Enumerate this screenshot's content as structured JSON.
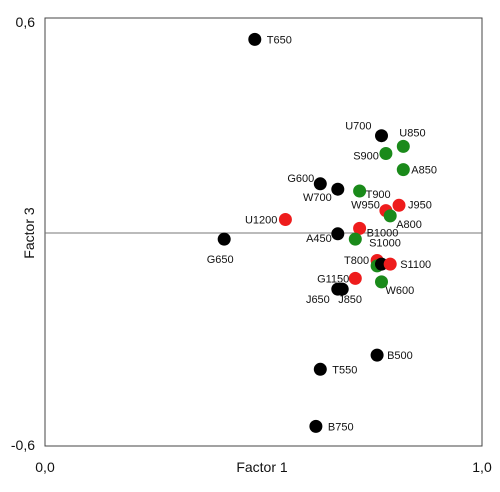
{
  "chart_data": {
    "type": "scatter",
    "title": "",
    "xlabel": "Factor 1",
    "ylabel": "Factor 3",
    "xlim": [
      0.0,
      1.0
    ],
    "ylim": [
      -0.6,
      0.6
    ],
    "x_ticks": [
      "0,0",
      "1,0"
    ],
    "y_ticks": [
      "0,6",
      "-0,6"
    ],
    "grid": false,
    "reference_line_y": 0,
    "colors": {
      "black": "#000000",
      "red": "#ee1c1c",
      "green": "#1a8a1a"
    },
    "points": [
      {
        "label": "T650",
        "x": 0.48,
        "y": 0.54,
        "color": "black"
      },
      {
        "label": "U700",
        "x": 0.77,
        "y": 0.27,
        "color": "black"
      },
      {
        "label": "U850",
        "x": 0.82,
        "y": 0.24,
        "color": "green"
      },
      {
        "label": "S900",
        "x": 0.78,
        "y": 0.22,
        "color": "green"
      },
      {
        "label": "A850",
        "x": 0.82,
        "y": 0.175,
        "color": "green"
      },
      {
        "label": "G600",
        "x": 0.63,
        "y": 0.135,
        "color": "black"
      },
      {
        "label": "W700",
        "x": 0.67,
        "y": 0.12,
        "color": "black"
      },
      {
        "label": "T900",
        "x": 0.72,
        "y": 0.115,
        "color": "green"
      },
      {
        "label": "J950",
        "x": 0.81,
        "y": 0.075,
        "color": "red"
      },
      {
        "label": "W950",
        "x": 0.78,
        "y": 0.06,
        "color": "red"
      },
      {
        "label": "A800",
        "x": 0.79,
        "y": 0.045,
        "color": "green"
      },
      {
        "label": "U1200",
        "x": 0.55,
        "y": 0.035,
        "color": "red"
      },
      {
        "label": "B1000",
        "x": 0.72,
        "y": 0.01,
        "color": "red"
      },
      {
        "label": "A450",
        "x": 0.67,
        "y": -0.005,
        "color": "black"
      },
      {
        "label": "",
        "x": 0.71,
        "y": -0.02,
        "color": "green"
      },
      {
        "label": "G650",
        "x": 0.41,
        "y": -0.02,
        "color": "black"
      },
      {
        "label": "S1000",
        "x": 0.76,
        "y": -0.08,
        "color": "red"
      },
      {
        "label": "T800",
        "x": 0.76,
        "y": -0.095,
        "color": "green"
      },
      {
        "label": "",
        "x": 0.77,
        "y": -0.09,
        "color": "black"
      },
      {
        "label": "S1100",
        "x": 0.79,
        "y": -0.09,
        "color": "red"
      },
      {
        "label": "G1150",
        "x": 0.71,
        "y": -0.13,
        "color": "red"
      },
      {
        "label": "W600",
        "x": 0.77,
        "y": -0.14,
        "color": "green"
      },
      {
        "label": "J850",
        "x": 0.68,
        "y": -0.16,
        "color": "black"
      },
      {
        "label": "J650",
        "x": 0.67,
        "y": -0.16,
        "color": "black"
      },
      {
        "label": "B500",
        "x": 0.76,
        "y": -0.345,
        "color": "black"
      },
      {
        "label": "T550",
        "x": 0.63,
        "y": -0.385,
        "color": "black"
      },
      {
        "label": "B750",
        "x": 0.62,
        "y": -0.545,
        "color": "black"
      }
    ]
  }
}
